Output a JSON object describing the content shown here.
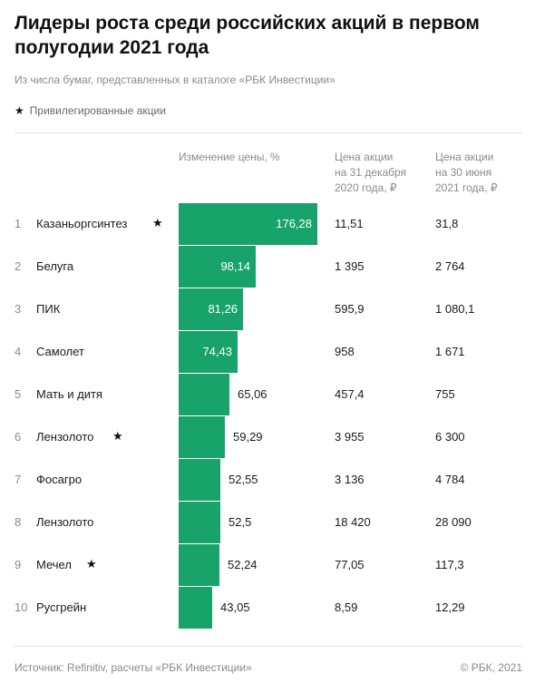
{
  "title": "Лидеры роста среди российских акций в первом полугодии 2021 года",
  "subtitle": "Из числа бумаг, представленных в каталоге «РБК Инвестиции»",
  "legend": {
    "star": "★",
    "label": "Привилегированные акции"
  },
  "columns": {
    "change": "Изменение цены, %",
    "price_2020": "Цена акции\nна 31 декабря\n2020 года, ₽",
    "price_2021": "Цена акции\nна 30 июня\n2021 года, ₽"
  },
  "footer": {
    "source": "Источник:  Refinitiv, расчеты «РБК Инвестиции»",
    "copyright": "©  РБК, 2021"
  },
  "colors": {
    "bar": "#18a36a"
  },
  "chart_data": {
    "type": "bar",
    "orientation": "horizontal",
    "title": "Лидеры роста среди российских акций в первом полугодии 2021 года",
    "categories": [
      "Казаньоргсинтез",
      "Белуга",
      "ПИК",
      "Самолет",
      "Мать и дитя",
      "Лензолото",
      "Фосагро",
      "Лензолото",
      "Мечел",
      "Русгрейн"
    ],
    "ranks": [
      "1",
      "2",
      "3",
      "4",
      "5",
      "6",
      "7",
      "8",
      "9",
      "10"
    ],
    "preferred": [
      true,
      false,
      false,
      false,
      false,
      true,
      false,
      false,
      true,
      false
    ],
    "values": [
      176.28,
      98.14,
      81.26,
      74.43,
      65.06,
      59.29,
      52.55,
      52.5,
      52.24,
      43.05
    ],
    "value_labels": [
      "176,28",
      "98,14",
      "81,26",
      "74,43",
      "65,06",
      "59,29",
      "52,55",
      "52,5",
      "52,24",
      "43,05"
    ],
    "price_2020": [
      "11,51",
      "1 395",
      "595,9",
      "958",
      "457,4",
      "3 955",
      "3 136",
      "18 420",
      "77,05",
      "8,59"
    ],
    "price_2021": [
      "31,8",
      "2 764",
      "1 080,1",
      "1 671",
      "755",
      "6 300",
      "4 784",
      "28 090",
      "117,3",
      "12,29"
    ],
    "xlabel": "Изменение цены, %",
    "grid": false
  }
}
